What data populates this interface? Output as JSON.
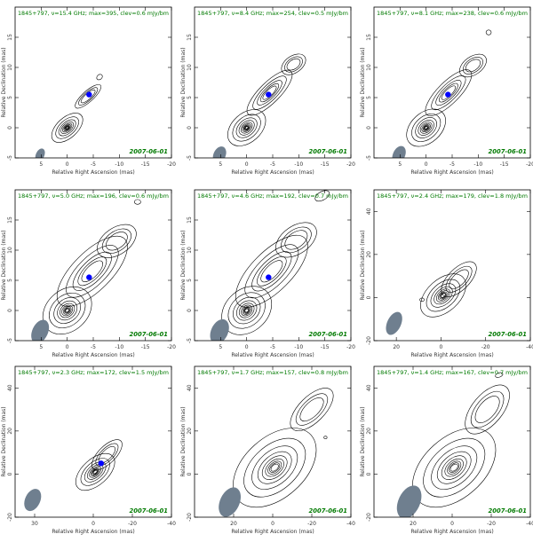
{
  "chart_data": [
    {
      "type": "contour",
      "title": "1845+797, ν=15.4 GHz; max=395, clev=0.6 mJy/bm",
      "date": "2007-06-01",
      "xlabel": "Relative Right Ascension (mas)",
      "ylabel": "Relative Declination (mas)",
      "xlim": [
        10,
        -20
      ],
      "ylim": [
        -5,
        20
      ],
      "xticks": [
        5,
        0,
        -5,
        -10,
        -15,
        -20
      ],
      "yticks": [
        -5,
        0,
        5,
        10,
        15
      ],
      "beam": {
        "x": 5.2,
        "y": -4.5,
        "major": 1.3,
        "minor": 0.7,
        "pa": 25
      },
      "core": {
        "x": -4.2,
        "y": 5.5
      },
      "components": [
        {
          "x": 0,
          "y": 0,
          "major": 3.6,
          "minor": 1.7,
          "pa": -42,
          "levels": 10
        },
        {
          "x": -4,
          "y": 5.2,
          "major": 3.2,
          "minor": 0.9,
          "pa": -42,
          "levels": 3
        },
        {
          "x": -6.2,
          "y": 8.4,
          "major": 0.6,
          "minor": 0.4,
          "pa": -40,
          "levels": 1
        }
      ]
    },
    {
      "type": "contour",
      "title": "1845+797, ν=8.4 GHz; max=254, clev=0.5 mJy/bm",
      "date": "2007-06-01",
      "xlabel": "Relative Right Ascension (mas)",
      "ylabel": "Relative Declination (mas)",
      "xlim": [
        10,
        -20
      ],
      "ylim": [
        -5,
        20
      ],
      "xticks": [
        5,
        0,
        -5,
        -10,
        -15,
        -20
      ],
      "yticks": [
        -5,
        0,
        5,
        10,
        15
      ],
      "beam": {
        "x": 5.2,
        "y": -4.5,
        "major": 1.7,
        "minor": 1.0,
        "pa": 25
      },
      "core": {
        "x": -4.2,
        "y": 5.5
      },
      "components": [
        {
          "x": 0,
          "y": 0,
          "major": 4.2,
          "minor": 2.4,
          "pa": -42,
          "levels": 10
        },
        {
          "x": -4.4,
          "y": 5.8,
          "major": 5.8,
          "minor": 1.7,
          "pa": -45,
          "levels": 5
        },
        {
          "x": -9,
          "y": 10.5,
          "major": 2.6,
          "minor": 1.4,
          "pa": -35,
          "levels": 3
        }
      ]
    },
    {
      "type": "contour",
      "title": "1845+797, ν=8.1 GHz; max=238, clev=0.6 mJy/bm",
      "date": "2007-06-01",
      "xlabel": "Relative Right Ascension (mas)",
      "ylabel": "Relative Declination (mas)",
      "xlim": [
        10,
        -20
      ],
      "ylim": [
        -5,
        20
      ],
      "xticks": [
        5,
        0,
        -5,
        -10,
        -15,
        -20
      ],
      "yticks": [
        -5,
        0,
        5,
        10,
        15
      ],
      "beam": {
        "x": 5.2,
        "y": -4.5,
        "major": 1.8,
        "minor": 1.0,
        "pa": 25
      },
      "core": {
        "x": -4.2,
        "y": 5.5
      },
      "components": [
        {
          "x": 0,
          "y": 0,
          "major": 4.3,
          "minor": 2.5,
          "pa": -42,
          "levels": 10
        },
        {
          "x": -4.3,
          "y": 5.8,
          "major": 5.9,
          "minor": 1.8,
          "pa": -45,
          "levels": 5
        },
        {
          "x": -9,
          "y": 10.3,
          "major": 2.9,
          "minor": 1.5,
          "pa": -35,
          "levels": 3
        },
        {
          "x": -12,
          "y": 15.8,
          "major": 0.5,
          "minor": 0.4,
          "pa": 0,
          "levels": 1
        }
      ]
    },
    {
      "type": "contour",
      "title": "1845+797, ν=5.0 GHz; max=196, clev=0.6 mJy/bm",
      "date": "2007-06-01",
      "xlabel": "Relative Right Ascension (mas)",
      "ylabel": "Relative Declination (mas)",
      "xlim": [
        10,
        -20
      ],
      "ylim": [
        -5,
        20
      ],
      "xticks": [
        5,
        0,
        -5,
        -10,
        -15,
        -20
      ],
      "yticks": [
        -5,
        0,
        5,
        10,
        15
      ],
      "beam": {
        "x": 5.2,
        "y": -3.5,
        "major": 2.4,
        "minor": 1.3,
        "pa": 25
      },
      "core": {
        "x": -4.2,
        "y": 5.5
      },
      "components": [
        {
          "x": 0,
          "y": 0,
          "major": 5.2,
          "minor": 3.4,
          "pa": -42,
          "levels": 10
        },
        {
          "x": -4.8,
          "y": 6.5,
          "major": 8.8,
          "minor": 3.2,
          "pa": -45,
          "levels": 5
        },
        {
          "x": -9.5,
          "y": 11.5,
          "major": 4.2,
          "minor": 2.2,
          "pa": -35,
          "levels": 3
        },
        {
          "x": -13.5,
          "y": 18,
          "major": 0.6,
          "minor": 0.4,
          "pa": 0,
          "levels": 1
        }
      ]
    },
    {
      "type": "contour",
      "title": "1845+797, ν=4.6 GHz; max=192, clev=0.7 mJy/bm",
      "date": "2007-06-01",
      "xlabel": "Relative Right Ascension (mas)",
      "ylabel": "Relative Declination (mas)",
      "xlim": [
        10,
        -20
      ],
      "ylim": [
        -5,
        20
      ],
      "xticks": [
        5,
        0,
        -5,
        -10,
        -15,
        -20
      ],
      "yticks": [
        -5,
        0,
        5,
        10,
        15
      ],
      "beam": {
        "x": 5.2,
        "y": -3.5,
        "major": 2.5,
        "minor": 1.4,
        "pa": 25
      },
      "core": {
        "x": -4.2,
        "y": 5.5
      },
      "components": [
        {
          "x": 0,
          "y": 0,
          "major": 5.3,
          "minor": 3.5,
          "pa": -42,
          "levels": 10
        },
        {
          "x": -4.8,
          "y": 6.5,
          "major": 9,
          "minor": 3.3,
          "pa": -45,
          "levels": 5
        },
        {
          "x": -9.5,
          "y": 11.7,
          "major": 4.4,
          "minor": 2.3,
          "pa": -35,
          "levels": 3
        },
        {
          "x": -14.5,
          "y": 19,
          "major": 1.5,
          "minor": 0.7,
          "pa": -30,
          "levels": 1
        }
      ]
    },
    {
      "type": "contour",
      "title": "1845+797, ν=2.4 GHz; max=179, clev=1.8 mJy/bm",
      "date": "2007-06-01",
      "xlabel": "Relative Right Ascension (mas)",
      "ylabel": "Relative Declination (mas)",
      "xlim": [
        30,
        -40
      ],
      "ylim": [
        -20,
        50
      ],
      "xticks": [
        20,
        0,
        -20,
        -40
      ],
      "yticks": [
        -20,
        0,
        20,
        40
      ],
      "beam": {
        "x": 21,
        "y": -12,
        "major": 5.5,
        "minor": 3.2,
        "pa": 25
      },
      "core": null,
      "components": [
        {
          "x": -1,
          "y": 1,
          "major": 12,
          "minor": 7.5,
          "pa": -42,
          "levels": 9
        },
        {
          "x": -8,
          "y": 8.5,
          "major": 10,
          "minor": 5,
          "pa": -45,
          "levels": 3
        },
        {
          "x": 8.5,
          "y": -1,
          "major": 1,
          "minor": 0.8,
          "pa": 0,
          "levels": 1
        }
      ]
    },
    {
      "type": "contour",
      "title": "1845+797, ν=2.3 GHz; max=172, clev=1.5 mJy/bm",
      "date": "2007-06-01",
      "xlabel": "Relative Right Ascension (mas)",
      "ylabel": "Relative Declination (mas)",
      "xlim": [
        40,
        -40
      ],
      "ylim": [
        -20,
        50
      ],
      "xticks": [
        30,
        0,
        -20,
        -40
      ],
      "yticks": [
        -20,
        0,
        20,
        40
      ],
      "beam": {
        "x": 31,
        "y": -12,
        "major": 6,
        "minor": 3.5,
        "pa": 25
      },
      "core": {
        "x": -4,
        "y": 5
      },
      "components": [
        {
          "x": -1,
          "y": 1,
          "major": 12,
          "minor": 6,
          "pa": -42,
          "levels": 9
        },
        {
          "x": -7,
          "y": 9,
          "major": 10,
          "minor": 4,
          "pa": -45,
          "levels": 3
        }
      ]
    },
    {
      "type": "contour",
      "title": "1845+797, ν=1.7 GHz; max=157, clev=0.8 mJy/bm",
      "date": "2007-06-01",
      "xlabel": "Relative Right Ascension (mas)",
      "ylabel": "Relative Declination (mas)",
      "xlim": [
        40,
        -40
      ],
      "ylim": [
        -20,
        50
      ],
      "xticks": [
        20,
        0,
        -20,
        -40
      ],
      "yticks": [
        -20,
        0,
        20,
        40
      ],
      "beam": {
        "x": 22,
        "y": -13,
        "major": 8,
        "minor": 4.5,
        "pa": 25
      },
      "core": null,
      "components": [
        {
          "x": -1,
          "y": 3,
          "major": 25,
          "minor": 14,
          "pa": -42,
          "levels": 9
        },
        {
          "x": -20,
          "y": 30,
          "major": 14,
          "minor": 6,
          "pa": -45,
          "levels": 3
        },
        {
          "x": -27,
          "y": 17,
          "major": 0.8,
          "minor": 0.6,
          "pa": 0,
          "levels": 1
        }
      ]
    },
    {
      "type": "contour",
      "title": "1845+797, ν=1.4 GHz; max=167, clev=0.7 mJy/bm",
      "date": "2007-06-01",
      "xlabel": "Relative Right Ascension (mas)",
      "ylabel": "Relative Declination (mas)",
      "xlim": [
        40,
        -40
      ],
      "ylim": [
        -20,
        50
      ],
      "xticks": [
        20,
        0,
        -20,
        -40
      ],
      "yticks": [
        -20,
        0,
        20,
        40
      ],
      "beam": {
        "x": 22,
        "y": -13,
        "major": 9,
        "minor": 5,
        "pa": 25
      },
      "core": null,
      "components": [
        {
          "x": -1,
          "y": 3,
          "major": 25,
          "minor": 14,
          "pa": -42,
          "levels": 9
        },
        {
          "x": -18,
          "y": 30,
          "major": 15,
          "minor": 7,
          "pa": -50,
          "levels": 3
        },
        {
          "x": -24,
          "y": 46,
          "major": 2,
          "minor": 1,
          "pa": -20,
          "levels": 1
        }
      ]
    }
  ],
  "colors": {
    "title": "#007a00",
    "date": "#007a00",
    "contour": "#000000",
    "beam": "#6f7f8f",
    "core": "#0000ff",
    "axes": "#000000"
  }
}
